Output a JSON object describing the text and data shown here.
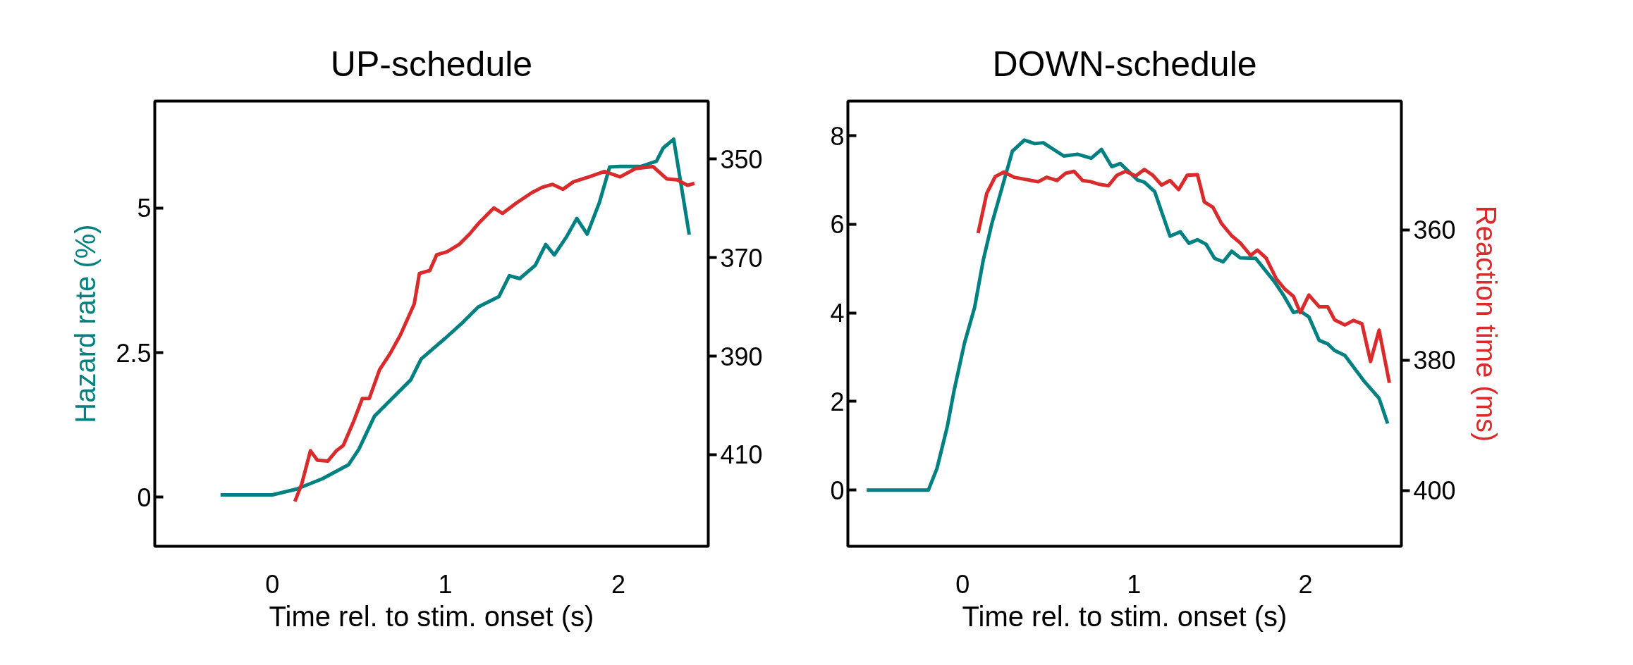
{
  "chart_data": [
    {
      "type": "line",
      "title": "UP-schedule",
      "xlabel": "Time rel. to stim. onset (s)",
      "ylabel": "Hazard rate (%)",
      "xlim": [
        -0.68,
        2.52
      ],
      "xticks": [
        0,
        1,
        2
      ],
      "ylim": [
        -0.85,
        6.85
      ],
      "yticks": [
        0,
        2.5,
        5
      ],
      "y2lim": [
        428.6,
        338.2
      ],
      "y2ticks": [
        350,
        370,
        390,
        410
      ],
      "grid": false,
      "series": [
        {
          "color": "#008080",
          "x": [
            -0.3,
            0.0,
            0.14,
            0.29,
            0.44,
            0.5,
            0.59,
            0.71,
            0.8,
            0.86,
            1.0,
            1.1,
            1.19,
            1.31,
            1.37,
            1.43,
            1.52,
            1.58,
            1.63,
            1.7,
            1.76,
            1.82,
            1.89,
            1.95,
            2.01,
            2.13,
            2.22,
            2.26,
            2.32,
            2.41
          ],
          "values": [
            0.04,
            0.04,
            0.14,
            0.32,
            0.56,
            0.83,
            1.4,
            1.76,
            2.03,
            2.39,
            2.75,
            3.02,
            3.29,
            3.47,
            3.83,
            3.78,
            4.01,
            4.37,
            4.19,
            4.5,
            4.82,
            4.55,
            5.09,
            5.71,
            5.72,
            5.72,
            5.81,
            6.04,
            6.19,
            4.54
          ]
        },
        {
          "color": "#d92b2b",
          "axis": "y2",
          "x": [
            0.13,
            0.17,
            0.22,
            0.26,
            0.32,
            0.37,
            0.41,
            0.47,
            0.52,
            0.56,
            0.62,
            0.68,
            0.74,
            0.82,
            0.85,
            0.91,
            0.95,
            1.01,
            1.08,
            1.14,
            1.19,
            1.28,
            1.33,
            1.41,
            1.5,
            1.56,
            1.62,
            1.68,
            1.74,
            1.83,
            1.92,
            2.01,
            2.1,
            2.2,
            2.28,
            2.34,
            2.4,
            2.44
          ],
          "values": [
            419.5,
            415.9,
            409.2,
            411.1,
            411.3,
            409.2,
            408.1,
            403.2,
            398.6,
            398.6,
            392.7,
            389.5,
            385.7,
            379.4,
            373.2,
            372.6,
            369.4,
            368.8,
            367.3,
            365.2,
            363.1,
            359.9,
            361.0,
            358.9,
            356.8,
            355.7,
            355.1,
            356.1,
            354.6,
            353.6,
            352.5,
            353.6,
            351.9,
            351.5,
            354.0,
            354.2,
            355.3,
            354.9
          ]
        }
      ]
    },
    {
      "type": "line",
      "title": "DOWN-schedule",
      "xlabel": "Time rel. to stim. onset (s)",
      "y2label": "Reaction time (ms)",
      "xlim": [
        -0.67,
        2.56
      ],
      "xticks": [
        0,
        1,
        2
      ],
      "ylim": [
        -1.27,
        8.78
      ],
      "yticks": [
        0,
        2,
        4,
        6,
        8
      ],
      "y2lim": [
        408.6,
        340.2
      ],
      "y2ticks": [
        360,
        380,
        400
      ],
      "grid": false,
      "series": [
        {
          "color": "#008080",
          "x": [
            -0.56,
            -0.2,
            -0.15,
            -0.09,
            -0.05,
            0.01,
            0.07,
            0.12,
            0.17,
            0.23,
            0.29,
            0.36,
            0.42,
            0.47,
            0.59,
            0.67,
            0.75,
            0.81,
            0.87,
            0.92,
            1.02,
            1.06,
            1.12,
            1.21,
            1.27,
            1.32,
            1.37,
            1.42,
            1.47,
            1.52,
            1.57,
            1.62,
            1.71,
            1.82,
            1.87,
            1.93,
            1.97,
            2.02,
            2.08,
            2.13,
            2.17,
            2.23,
            2.34,
            2.43,
            2.48
          ],
          "values": [
            0,
            0,
            0.49,
            1.43,
            2.25,
            3.31,
            4.13,
            5.19,
            6.01,
            6.83,
            7.65,
            7.9,
            7.82,
            7.84,
            7.54,
            7.58,
            7.49,
            7.69,
            7.3,
            7.37,
            7.0,
            6.95,
            6.74,
            5.73,
            5.83,
            5.57,
            5.65,
            5.55,
            5.23,
            5.15,
            5.39,
            5.24,
            5.23,
            4.7,
            4.41,
            4.01,
            4.04,
            3.91,
            3.38,
            3.3,
            3.15,
            3.04,
            2.47,
            2.07,
            1.5
          ]
        },
        {
          "color": "#d92b2b",
          "axis": "y2",
          "x": [
            0.09,
            0.14,
            0.19,
            0.24,
            0.3,
            0.44,
            0.49,
            0.55,
            0.6,
            0.65,
            0.7,
            0.75,
            0.8,
            0.85,
            0.9,
            0.95,
            1.01,
            1.06,
            1.11,
            1.16,
            1.21,
            1.26,
            1.31,
            1.37,
            1.41,
            1.46,
            1.51,
            1.57,
            1.62,
            1.68,
            1.72,
            1.77,
            1.83,
            1.88,
            1.93,
            1.97,
            2.02,
            2.08,
            2.13,
            2.17,
            2.23,
            2.28,
            2.33,
            2.38,
            2.43,
            2.49
          ],
          "values": [
            360.5,
            354.4,
            351.8,
            351.1,
            351.9,
            352.6,
            351.9,
            352.4,
            351.3,
            351.0,
            352.4,
            352.6,
            353.0,
            353.2,
            351.6,
            351.0,
            351.7,
            350.7,
            351.6,
            353.1,
            352.4,
            353.8,
            351.6,
            351.5,
            355.7,
            356.5,
            359.0,
            360.9,
            362.0,
            363.9,
            363.1,
            364.3,
            367.5,
            369.1,
            370.2,
            372.7,
            370.0,
            371.8,
            371.8,
            373.8,
            374.6,
            373.9,
            374.4,
            380.2,
            375.4,
            383.5
          ]
        }
      ]
    }
  ]
}
